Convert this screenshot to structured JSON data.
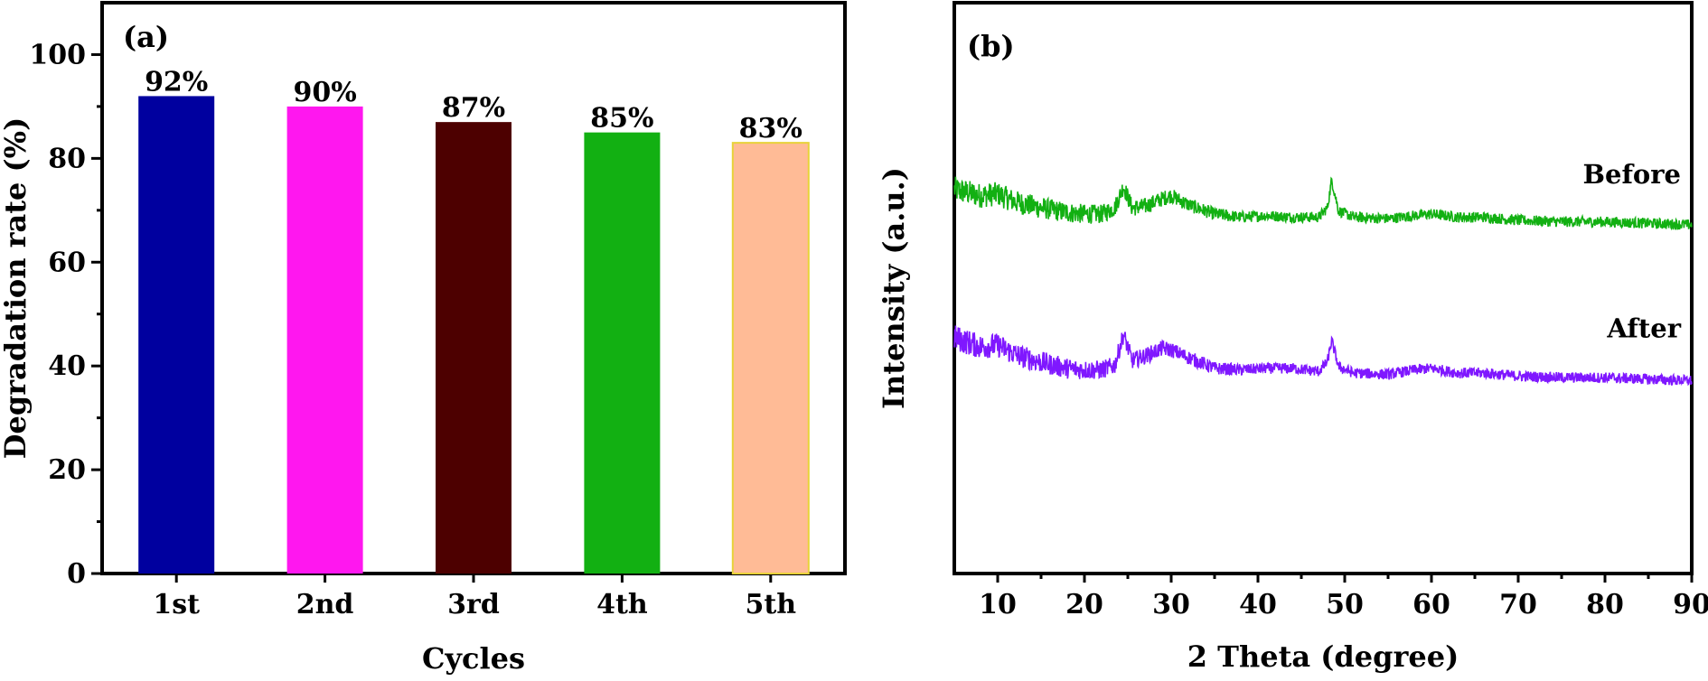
{
  "chart_data": [
    {
      "type": "bar",
      "panel_label": "(a)",
      "categories": [
        "1st",
        "2nd",
        "3rd",
        "4th",
        "5th"
      ],
      "values": [
        92,
        90,
        87,
        85,
        83
      ],
      "value_labels": [
        "92%",
        "90%",
        "87%",
        "85%",
        "83%"
      ],
      "colors": [
        "#00009f",
        "#ff17ef",
        "#4d0000",
        "#12b012",
        "#ffbb96"
      ],
      "xlabel": "Cycles",
      "ylabel": "Degradation rate (%)",
      "ylim": [
        0,
        110
      ],
      "yticks": [
        0,
        20,
        40,
        60,
        80,
        100
      ],
      "grid": false
    },
    {
      "type": "line",
      "panel_label": "(b)",
      "xlabel": "2 Theta (degree)",
      "ylabel": "Intensity (a.u.)",
      "xlim": [
        5,
        90
      ],
      "xticks": [
        10,
        20,
        30,
        40,
        50,
        60,
        70,
        80,
        90
      ],
      "y_tick_labels_shown": false,
      "grid": false,
      "series": [
        {
          "name": "Before",
          "color": "#12b012",
          "baseline": 1.0,
          "points": [
            [
              5,
              1.24
            ],
            [
              8,
              1.2
            ],
            [
              10,
              1.21
            ],
            [
              12,
              1.16
            ],
            [
              15,
              1.12
            ],
            [
              18,
              1.09
            ],
            [
              20,
              1.08
            ],
            [
              22,
              1.08
            ],
            [
              23.5,
              1.12
            ],
            [
              24.5,
              1.26
            ],
            [
              25.5,
              1.12
            ],
            [
              27,
              1.13
            ],
            [
              29,
              1.18
            ],
            [
              30,
              1.2
            ],
            [
              32,
              1.14
            ],
            [
              35,
              1.08
            ],
            [
              38,
              1.06
            ],
            [
              41,
              1.07
            ],
            [
              44,
              1.06
            ],
            [
              47,
              1.06
            ],
            [
              48,
              1.12
            ],
            [
              48.5,
              1.3
            ],
            [
              49.3,
              1.1
            ],
            [
              51,
              1.06
            ],
            [
              55,
              1.05
            ],
            [
              58,
              1.07
            ],
            [
              60,
              1.08
            ],
            [
              63,
              1.06
            ],
            [
              66,
              1.06
            ],
            [
              70,
              1.04
            ],
            [
              75,
              1.03
            ],
            [
              80,
              1.03
            ],
            [
              85,
              1.02
            ],
            [
              90,
              1.01
            ]
          ]
        },
        {
          "name": "After",
          "color": "#7f17ff",
          "baseline": 0.0,
          "points": [
            [
              5,
              0.28
            ],
            [
              8,
              0.22
            ],
            [
              10,
              0.23
            ],
            [
              12,
              0.17
            ],
            [
              15,
              0.12
            ],
            [
              18,
              0.08
            ],
            [
              20,
              0.07
            ],
            [
              22,
              0.07
            ],
            [
              23.5,
              0.1
            ],
            [
              24.5,
              0.3
            ],
            [
              25.5,
              0.13
            ],
            [
              27,
              0.16
            ],
            [
              29,
              0.21
            ],
            [
              30,
              0.2
            ],
            [
              32,
              0.15
            ],
            [
              35,
              0.08
            ],
            [
              38,
              0.07
            ],
            [
              41,
              0.08
            ],
            [
              44,
              0.08
            ],
            [
              47,
              0.06
            ],
            [
              48,
              0.12
            ],
            [
              48.5,
              0.26
            ],
            [
              49.3,
              0.09
            ],
            [
              51,
              0.05
            ],
            [
              55,
              0.04
            ],
            [
              58,
              0.07
            ],
            [
              60,
              0.08
            ],
            [
              63,
              0.05
            ],
            [
              66,
              0.05
            ],
            [
              70,
              0.03
            ],
            [
              75,
              0.02
            ],
            [
              80,
              0.02
            ],
            [
              85,
              0.01
            ],
            [
              90,
              0.0
            ]
          ]
        }
      ],
      "ylim": [
        -1.25,
        2.45
      ]
    }
  ]
}
